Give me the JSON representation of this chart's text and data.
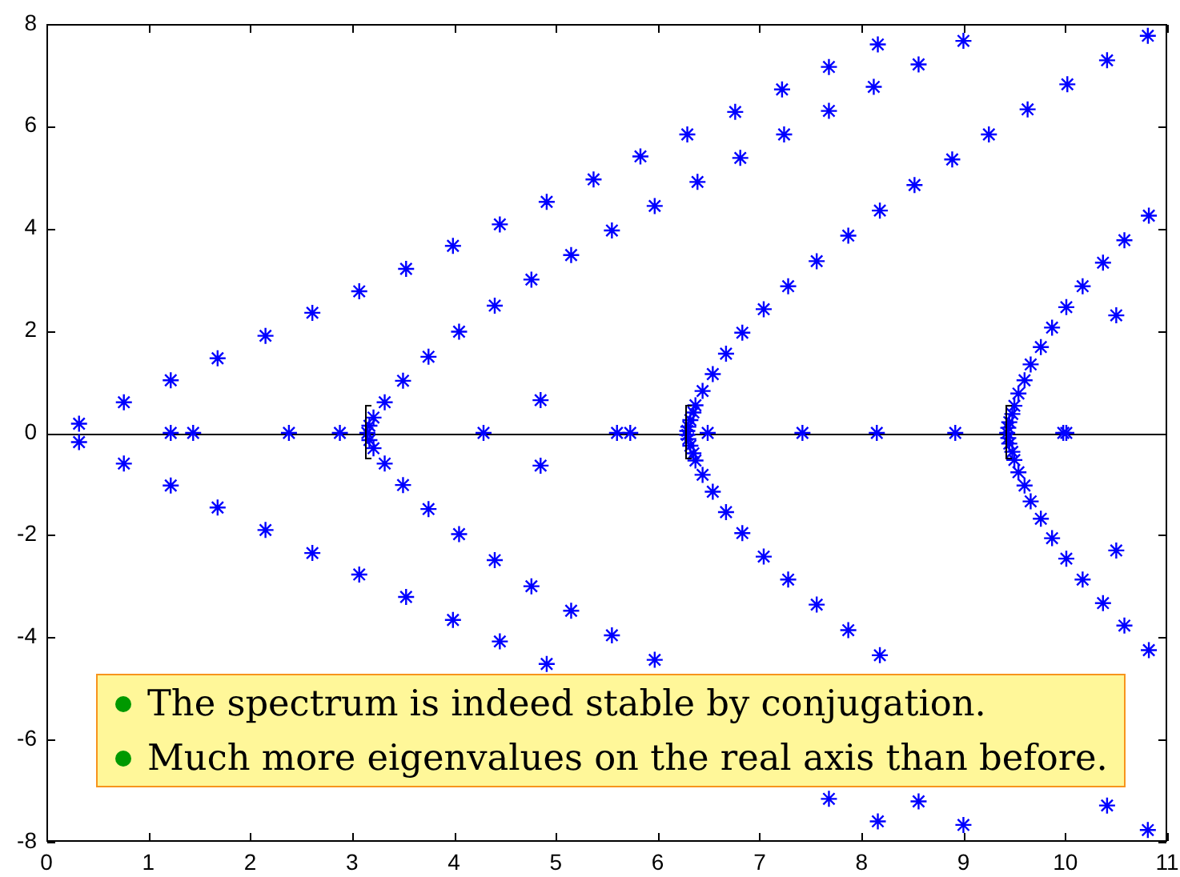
{
  "chart_data": {
    "type": "scatter",
    "xlim": [
      0,
      11
    ],
    "ylim": [
      -8,
      8
    ],
    "xticks": [
      0,
      1,
      2,
      3,
      4,
      5,
      6,
      7,
      8,
      9,
      10,
      11
    ],
    "yticks": [
      -8,
      -6,
      -4,
      -2,
      0,
      2,
      4,
      6,
      8
    ],
    "marker": "cross",
    "ref_lines": [
      {
        "axis": "y",
        "value": 0,
        "color": "#000000"
      }
    ],
    "annotations": [
      "The spectrum is indeed stable by conjugation.",
      "Much more eigenvalues on the real axis than before."
    ],
    "series": [
      {
        "color": "#0000ff",
        "x": [
          0.32,
          0.76,
          1.22,
          1.68,
          2.15,
          2.61,
          3.07,
          3.53,
          3.99,
          4.45,
          4.91,
          5.37,
          5.83,
          6.29,
          6.76,
          7.22,
          7.68,
          8.16,
          0.32,
          0.76,
          1.22,
          1.68,
          2.15,
          2.61,
          3.07,
          3.53,
          3.99,
          4.45,
          4.91,
          7.68,
          8.16,
          3.21,
          3.32,
          3.5,
          3.75,
          4.05,
          4.4,
          4.76,
          5.15,
          5.55,
          5.97,
          6.39,
          6.81,
          7.24,
          7.68,
          8.12,
          8.56,
          9.0,
          3.21,
          3.32,
          3.5,
          3.75,
          4.05,
          4.4,
          4.76,
          5.15,
          5.55,
          5.97,
          8.56,
          9.0,
          3.17,
          3.17,
          3.15,
          6.29,
          6.3,
          6.32,
          6.35,
          6.37,
          6.44,
          6.54,
          6.67,
          6.83,
          7.04,
          7.28,
          7.56,
          7.87,
          8.18,
          8.52,
          8.89,
          9.25,
          9.63,
          10.02,
          10.41,
          10.81,
          6.29,
          6.3,
          6.32,
          6.35,
          6.37,
          6.44,
          6.54,
          6.67,
          6.83,
          7.04,
          7.28,
          7.56,
          7.87,
          8.18,
          10.41,
          10.81,
          9.44,
          9.45,
          9.48,
          9.5,
          9.54,
          9.6,
          9.66,
          9.76,
          9.87,
          10.01,
          10.17,
          10.37,
          10.58,
          10.82,
          9.44,
          9.45,
          9.48,
          9.5,
          9.54,
          9.6,
          9.66,
          9.76,
          9.87,
          10.01,
          10.17,
          10.37,
          10.58,
          10.82,
          4.85,
          4.85,
          10.5,
          10.5,
          1.22,
          1.44,
          2.38,
          2.88,
          4.29,
          5.6,
          5.73,
          6.49,
          7.42,
          8.15,
          8.92,
          9.43,
          9.98,
          10.01
        ],
        "values": [
          0.18,
          0.6,
          1.03,
          1.46,
          1.9,
          2.35,
          2.77,
          3.21,
          3.66,
          4.08,
          4.52,
          4.96,
          5.41,
          5.84,
          6.28,
          6.72,
          7.16,
          7.6,
          -0.18,
          -0.6,
          -1.03,
          -1.46,
          -1.9,
          -2.35,
          -2.77,
          -3.21,
          -3.66,
          -4.08,
          -4.52,
          -7.16,
          -7.6,
          0.3,
          0.6,
          1.02,
          1.49,
          1.98,
          2.49,
          3.0,
          3.48,
          3.96,
          4.44,
          4.91,
          5.38,
          5.84,
          6.3,
          6.77,
          7.21,
          7.67,
          -0.3,
          -0.6,
          -1.02,
          -1.49,
          -1.98,
          -2.49,
          -3.0,
          -3.48,
          -3.96,
          -4.44,
          -7.21,
          -7.67,
          0.14,
          -0.14,
          0,
          0.04,
          0.12,
          0.25,
          0.4,
          0.54,
          0.82,
          1.15,
          1.55,
          1.96,
          2.42,
          2.87,
          3.36,
          3.86,
          4.35,
          4.85,
          5.35,
          5.84,
          6.33,
          6.82,
          7.29,
          7.77,
          -0.04,
          -0.12,
          -0.25,
          -0.4,
          -0.54,
          -0.82,
          -1.15,
          -1.55,
          -1.96,
          -2.42,
          -2.87,
          -3.36,
          -3.86,
          -4.35,
          -7.29,
          -7.77,
          0.1,
          0.21,
          0.37,
          0.53,
          0.77,
          1.03,
          1.34,
          1.68,
          2.06,
          2.46,
          2.87,
          3.33,
          3.77,
          4.25,
          -0.1,
          -0.21,
          -0.37,
          -0.53,
          -0.77,
          -1.03,
          -1.34,
          -1.68,
          -2.06,
          -2.46,
          -2.87,
          -3.33,
          -3.77,
          -4.25,
          0.64,
          -0.64,
          2.3,
          -2.3,
          0,
          0,
          0,
          0,
          0,
          0,
          0,
          0,
          0,
          0,
          0,
          0,
          0,
          0
        ]
      }
    ]
  }
}
